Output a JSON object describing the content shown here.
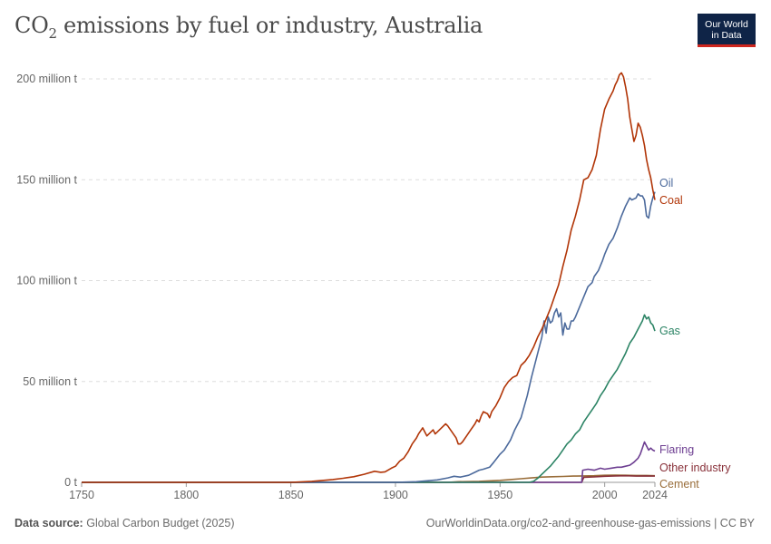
{
  "header": {
    "title_main": "CO",
    "title_sub": "2",
    "title_rest": " emissions by fuel or industry, Australia",
    "logo_line1": "Our World",
    "logo_line2": "in Data"
  },
  "footer": {
    "source_label": "Data source:",
    "source_text": "Global Carbon Budget (2025)",
    "right_text": "OurWorldinData.org/co2-and-greenhouse-gas-emissions | CC BY"
  },
  "colors": {
    "oil": "#4c6a9c",
    "coal": "#b13507",
    "gas": "#2c8465",
    "flaring": "#6d3e91",
    "other_industry": "#883039",
    "cement": "#996d39"
  },
  "chart_data": {
    "type": "line",
    "title": "CO₂ emissions by fuel or industry, Australia",
    "ylim": [
      0,
      200
    ],
    "xlim": [
      1750,
      2024
    ],
    "y_ticks": [
      {
        "value": 0,
        "label": "0 t"
      },
      {
        "value": 50,
        "label": "50 million t"
      },
      {
        "value": 100,
        "label": "100 million t"
      },
      {
        "value": 150,
        "label": "150 million t"
      },
      {
        "value": 200,
        "label": "200 million t"
      }
    ],
    "x_ticks": [
      "1750",
      "1800",
      "1850",
      "1900",
      "1950",
      "2000",
      "2024"
    ],
    "grid": "horizontal-dashed",
    "legend": "right-end-labels",
    "unit": "million t",
    "series": [
      {
        "name": "Oil",
        "color": "#4c6a9c",
        "points": [
          [
            1750,
            0
          ],
          [
            1900,
            0
          ],
          [
            1910,
            0.3
          ],
          [
            1920,
            1.2
          ],
          [
            1925,
            2.2
          ],
          [
            1928,
            3
          ],
          [
            1931,
            2.6
          ],
          [
            1935,
            3.5
          ],
          [
            1938,
            5
          ],
          [
            1940,
            6
          ],
          [
            1942,
            6.5
          ],
          [
            1945,
            7.5
          ],
          [
            1947,
            10
          ],
          [
            1950,
            14
          ],
          [
            1952,
            16
          ],
          [
            1955,
            21
          ],
          [
            1957,
            26
          ],
          [
            1960,
            32
          ],
          [
            1963,
            43
          ],
          [
            1965,
            52
          ],
          [
            1968,
            64
          ],
          [
            1970,
            72
          ],
          [
            1971,
            80
          ],
          [
            1972,
            74
          ],
          [
            1973,
            82
          ],
          [
            1974,
            79
          ],
          [
            1975,
            80
          ],
          [
            1976,
            84
          ],
          [
            1977,
            86
          ],
          [
            1978,
            82
          ],
          [
            1979,
            84
          ],
          [
            1980,
            73
          ],
          [
            1981,
            79
          ],
          [
            1982,
            76
          ],
          [
            1983,
            76
          ],
          [
            1984,
            80
          ],
          [
            1985,
            80
          ],
          [
            1986,
            82
          ],
          [
            1988,
            87
          ],
          [
            1990,
            92
          ],
          [
            1992,
            97
          ],
          [
            1994,
            99
          ],
          [
            1995,
            102
          ],
          [
            1997,
            105
          ],
          [
            1999,
            110
          ],
          [
            2000,
            113
          ],
          [
            2002,
            118
          ],
          [
            2004,
            121
          ],
          [
            2006,
            126
          ],
          [
            2008,
            132
          ],
          [
            2010,
            137
          ],
          [
            2012,
            141
          ],
          [
            2013,
            140
          ],
          [
            2015,
            141
          ],
          [
            2016,
            143
          ],
          [
            2017,
            142
          ],
          [
            2018,
            142
          ],
          [
            2019,
            140
          ],
          [
            2020,
            132
          ],
          [
            2021,
            131
          ],
          [
            2022,
            137
          ],
          [
            2023,
            141
          ],
          [
            2024,
            144
          ]
        ]
      },
      {
        "name": "Coal",
        "color": "#b13507",
        "points": [
          [
            1750,
            0
          ],
          [
            1850,
            0
          ],
          [
            1860,
            0.5
          ],
          [
            1870,
            1.4
          ],
          [
            1875,
            2
          ],
          [
            1880,
            2.8
          ],
          [
            1885,
            4
          ],
          [
            1890,
            5.5
          ],
          [
            1893,
            5
          ],
          [
            1895,
            5.2
          ],
          [
            1898,
            7
          ],
          [
            1900,
            8
          ],
          [
            1902,
            10.5
          ],
          [
            1904,
            12
          ],
          [
            1906,
            15
          ],
          [
            1908,
            19
          ],
          [
            1910,
            22
          ],
          [
            1911,
            24
          ],
          [
            1913,
            27
          ],
          [
            1914,
            25
          ],
          [
            1915,
            23
          ],
          [
            1916,
            24
          ],
          [
            1918,
            26
          ],
          [
            1919,
            24
          ],
          [
            1920,
            25
          ],
          [
            1922,
            27
          ],
          [
            1924,
            29
          ],
          [
            1925,
            28
          ],
          [
            1927,
            25
          ],
          [
            1929,
            22
          ],
          [
            1930,
            19
          ],
          [
            1931,
            19
          ],
          [
            1932,
            20
          ],
          [
            1934,
            23
          ],
          [
            1936,
            26
          ],
          [
            1938,
            29
          ],
          [
            1939,
            31
          ],
          [
            1940,
            30
          ],
          [
            1941,
            33
          ],
          [
            1942,
            35
          ],
          [
            1944,
            34
          ],
          [
            1945,
            32
          ],
          [
            1946,
            35
          ],
          [
            1948,
            38
          ],
          [
            1950,
            42
          ],
          [
            1952,
            47
          ],
          [
            1954,
            50
          ],
          [
            1956,
            52
          ],
          [
            1958,
            53
          ],
          [
            1960,
            58
          ],
          [
            1962,
            60
          ],
          [
            1964,
            63
          ],
          [
            1966,
            67
          ],
          [
            1968,
            72
          ],
          [
            1970,
            76
          ],
          [
            1972,
            81
          ],
          [
            1974,
            86
          ],
          [
            1976,
            92
          ],
          [
            1978,
            98
          ],
          [
            1980,
            107
          ],
          [
            1982,
            115
          ],
          [
            1984,
            125
          ],
          [
            1986,
            132
          ],
          [
            1988,
            140
          ],
          [
            1990,
            150
          ],
          [
            1992,
            151
          ],
          [
            1994,
            155
          ],
          [
            1996,
            162
          ],
          [
            1998,
            175
          ],
          [
            1999,
            180
          ],
          [
            2000,
            185
          ],
          [
            2002,
            190
          ],
          [
            2004,
            194
          ],
          [
            2005,
            197
          ],
          [
            2006,
            199
          ],
          [
            2007,
            202
          ],
          [
            2008,
            203
          ],
          [
            2009,
            201
          ],
          [
            2010,
            196
          ],
          [
            2011,
            190
          ],
          [
            2012,
            181
          ],
          [
            2013,
            175
          ],
          [
            2014,
            169
          ],
          [
            2015,
            172
          ],
          [
            2016,
            178
          ],
          [
            2017,
            176
          ],
          [
            2018,
            172
          ],
          [
            2019,
            167
          ],
          [
            2020,
            160
          ],
          [
            2021,
            155
          ],
          [
            2022,
            151
          ],
          [
            2023,
            145
          ],
          [
            2024,
            140
          ]
        ]
      },
      {
        "name": "Gas",
        "color": "#2c8465",
        "points": [
          [
            1750,
            0
          ],
          [
            1964,
            0
          ],
          [
            1966,
            0.5
          ],
          [
            1968,
            2
          ],
          [
            1970,
            4
          ],
          [
            1972,
            6
          ],
          [
            1974,
            8
          ],
          [
            1976,
            10.5
          ],
          [
            1978,
            13
          ],
          [
            1980,
            16
          ],
          [
            1982,
            19
          ],
          [
            1984,
            21
          ],
          [
            1986,
            24
          ],
          [
            1988,
            26
          ],
          [
            1990,
            30
          ],
          [
            1992,
            33
          ],
          [
            1994,
            36
          ],
          [
            1996,
            39
          ],
          [
            1998,
            43
          ],
          [
            2000,
            46
          ],
          [
            2002,
            50
          ],
          [
            2004,
            53
          ],
          [
            2006,
            56
          ],
          [
            2008,
            60
          ],
          [
            2010,
            64
          ],
          [
            2012,
            69
          ],
          [
            2014,
            72
          ],
          [
            2016,
            76
          ],
          [
            2018,
            80
          ],
          [
            2019,
            83
          ],
          [
            2020,
            81
          ],
          [
            2021,
            82
          ],
          [
            2022,
            79
          ],
          [
            2023,
            78
          ],
          [
            2024,
            75
          ]
        ]
      },
      {
        "name": "Flaring",
        "color": "#6d3e91",
        "points": [
          [
            1750,
            0
          ],
          [
            1989,
            0
          ],
          [
            1989.5,
            6
          ],
          [
            1992,
            6.5
          ],
          [
            1995,
            6
          ],
          [
            1998,
            7
          ],
          [
            2000,
            6.5
          ],
          [
            2003,
            7
          ],
          [
            2006,
            7.5
          ],
          [
            2008,
            7.5
          ],
          [
            2010,
            8
          ],
          [
            2012,
            8.5
          ],
          [
            2014,
            10
          ],
          [
            2016,
            12
          ],
          [
            2017,
            14
          ],
          [
            2018,
            17
          ],
          [
            2019,
            20
          ],
          [
            2020,
            18
          ],
          [
            2021,
            16
          ],
          [
            2022,
            17
          ],
          [
            2023,
            16
          ],
          [
            2024,
            15.5
          ]
        ]
      },
      {
        "name": "Other industry",
        "color": "#883039",
        "points": [
          [
            1750,
            0
          ],
          [
            1989,
            0
          ],
          [
            1990,
            2.5
          ],
          [
            1995,
            2.7
          ],
          [
            2000,
            3
          ],
          [
            2005,
            3.2
          ],
          [
            2010,
            3.3
          ],
          [
            2015,
            3.1
          ],
          [
            2020,
            3.2
          ],
          [
            2024,
            3.1
          ]
        ]
      },
      {
        "name": "Cement",
        "color": "#996d39",
        "points": [
          [
            1750,
            0
          ],
          [
            1925,
            0
          ],
          [
            1930,
            0.3
          ],
          [
            1940,
            0.5
          ],
          [
            1950,
            1
          ],
          [
            1955,
            1.4
          ],
          [
            1960,
            1.8
          ],
          [
            1965,
            2.2
          ],
          [
            1970,
            2.6
          ],
          [
            1975,
            2.8
          ],
          [
            1980,
            2.9
          ],
          [
            1985,
            3.1
          ],
          [
            1990,
            3.2
          ],
          [
            1995,
            3.3
          ],
          [
            2000,
            3.5
          ],
          [
            2005,
            3.6
          ],
          [
            2010,
            3.5
          ],
          [
            2015,
            3.4
          ],
          [
            2020,
            3.4
          ],
          [
            2024,
            3.3
          ]
        ]
      }
    ]
  }
}
